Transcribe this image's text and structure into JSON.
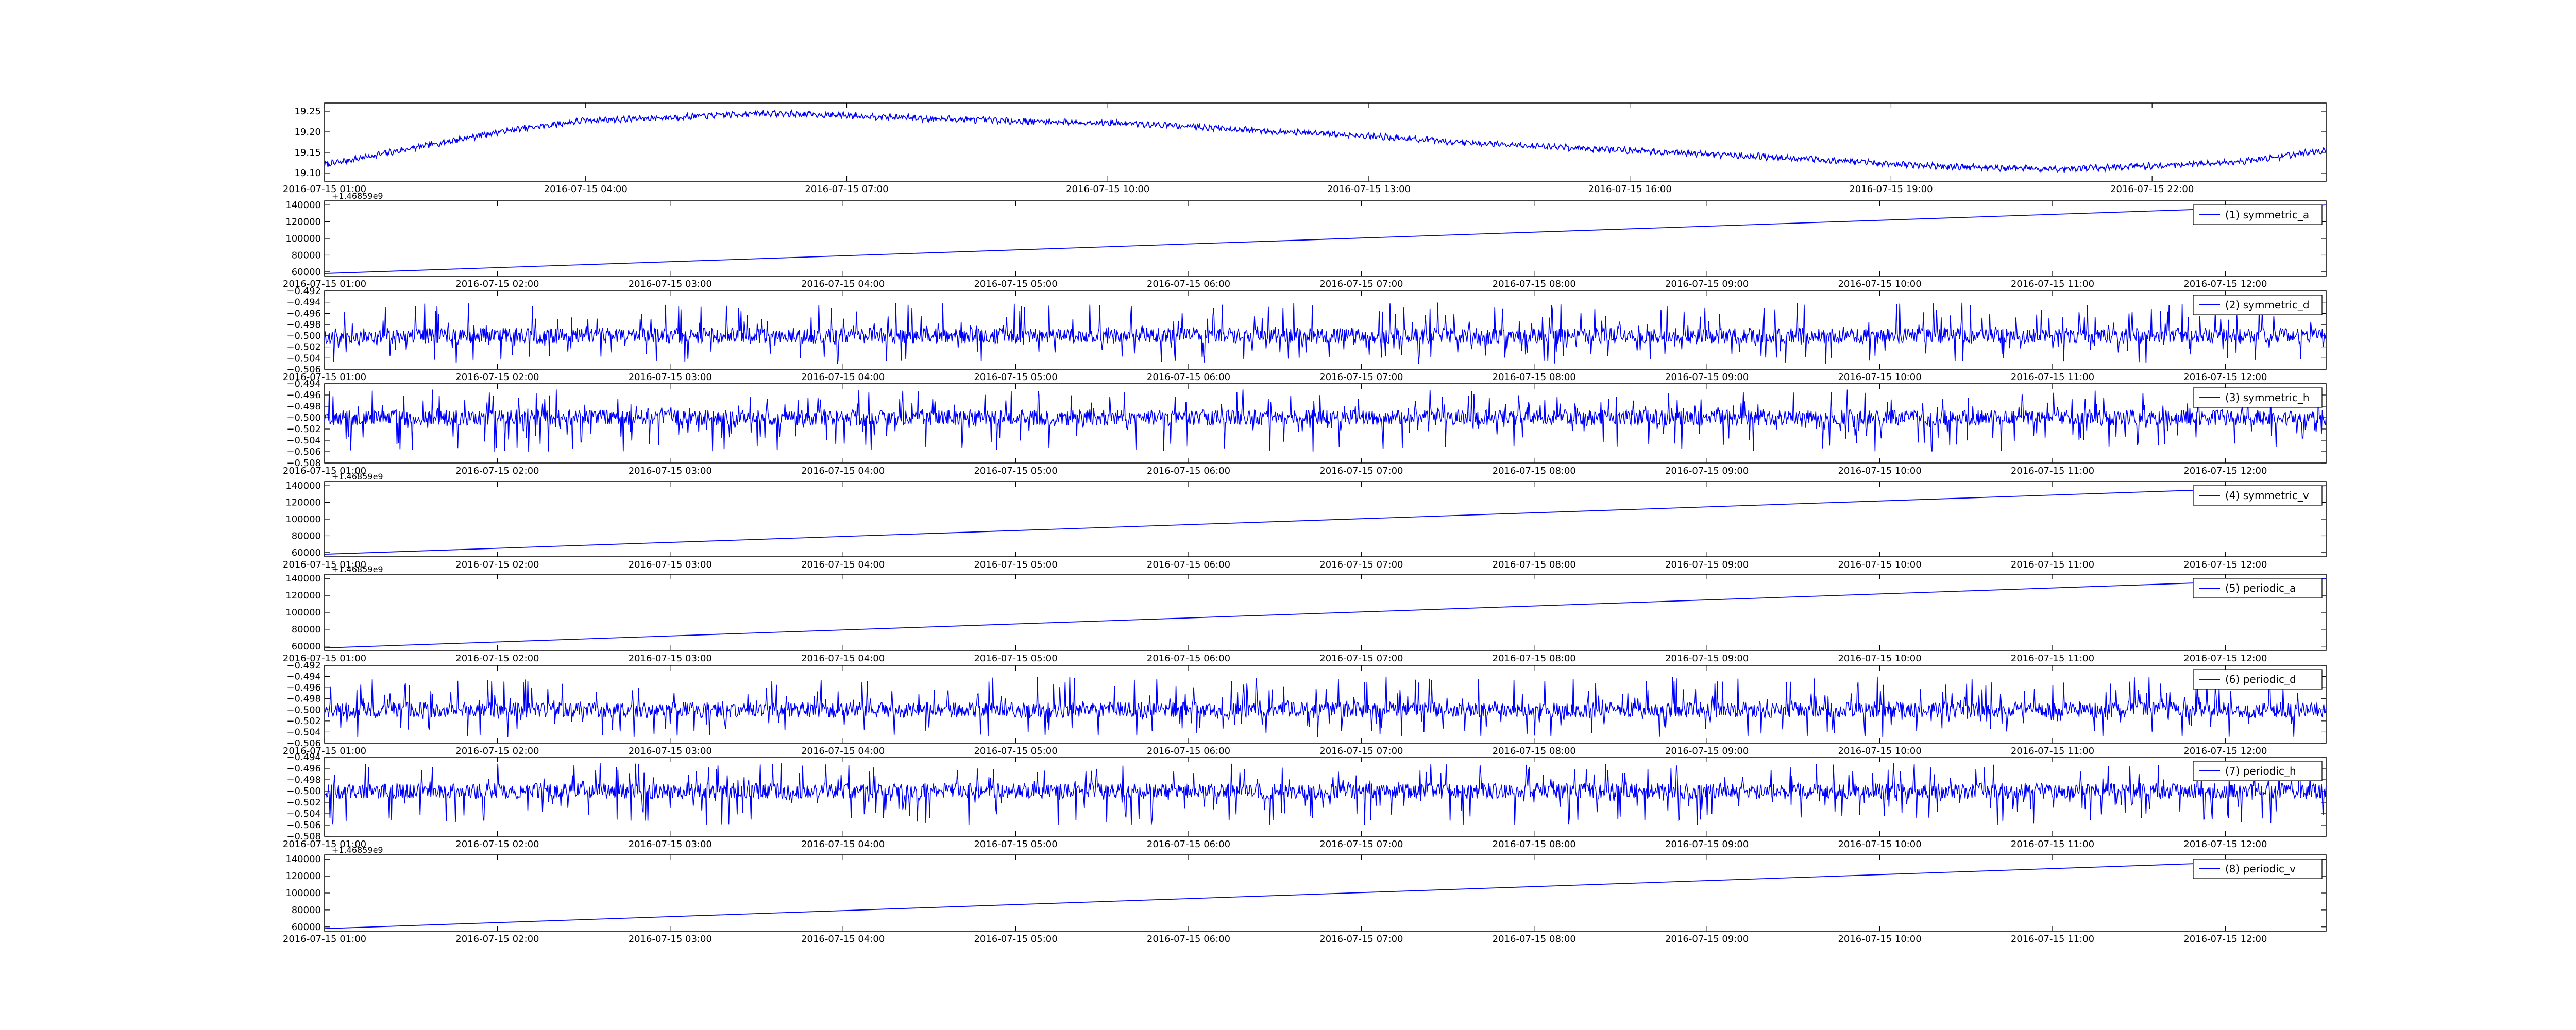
{
  "chart_data": [
    {
      "type": "line",
      "title": "",
      "xlabel": "",
      "ylabel": "",
      "x_range": [
        "2016-07-15 01:00",
        "2016-07-16 00:00"
      ],
      "ylim": [
        19.08,
        19.27
      ],
      "yticks": [
        19.1,
        19.15,
        19.2,
        19.25
      ],
      "ytick_labels": [
        "19.10",
        "19.15",
        "19.20",
        "19.25"
      ],
      "xticks": [
        "2016-07-15 01:00",
        "2016-07-15 04:00",
        "2016-07-15 07:00",
        "2016-07-15 10:00",
        "2016-07-15 13:00",
        "2016-07-15 16:00",
        "2016-07-15 19:00",
        "2016-07-15 22:00"
      ],
      "offset_label": "",
      "legend": null,
      "color": "#0000ff",
      "series": [
        {
          "x": [
            "2016-07-15 01:00",
            "2016-07-15 02:00",
            "2016-07-15 03:00",
            "2016-07-15 04:00",
            "2016-07-15 05:00",
            "2016-07-15 06:00",
            "2016-07-15 07:00",
            "2016-07-15 08:00",
            "2016-07-15 09:00",
            "2016-07-15 10:00",
            "2016-07-15 11:00",
            "2016-07-15 12:00",
            "2016-07-15 13:00",
            "2016-07-15 14:00",
            "2016-07-15 15:00",
            "2016-07-15 16:00",
            "2016-07-15 17:00",
            "2016-07-15 18:00",
            "2016-07-15 19:00",
            "2016-07-15 20:00",
            "2016-07-15 21:00",
            "2016-07-15 22:00",
            "2016-07-15 23:00",
            "2016-07-16 00:00"
          ],
          "values": [
            19.12,
            19.16,
            19.2,
            19.228,
            19.235,
            19.245,
            19.24,
            19.232,
            19.226,
            19.222,
            19.213,
            19.2,
            19.19,
            19.175,
            19.165,
            19.155,
            19.145,
            19.135,
            19.122,
            19.113,
            19.11,
            19.117,
            19.128,
            19.155
          ]
        }
      ]
    },
    {
      "type": "line",
      "title": "",
      "xlabel": "",
      "ylabel": "",
      "x_range": [
        "2016-07-15 01:00",
        "2016-07-15 12:35"
      ],
      "ylim": [
        55000,
        145000
      ],
      "yticks": [
        60000,
        80000,
        100000,
        120000,
        140000
      ],
      "ytick_labels": [
        "60000",
        "80000",
        "100000",
        "120000",
        "140000"
      ],
      "xticks": [
        "2016-07-15 01:00",
        "2016-07-15 02:00",
        "2016-07-15 03:00",
        "2016-07-15 04:00",
        "2016-07-15 05:00",
        "2016-07-15 06:00",
        "2016-07-15 07:00",
        "2016-07-15 08:00",
        "2016-07-15 09:00",
        "2016-07-15 10:00",
        "2016-07-15 11:00",
        "2016-07-15 12:00"
      ],
      "offset_label": "+1.46859e9",
      "legend": "(1) symmetric_a",
      "color": "#0000ff",
      "series": [
        {
          "name": "(1) symmetric_a",
          "x": [
            "2016-07-15 01:00",
            "2016-07-15 12:35"
          ],
          "values": [
            58000,
            140000
          ]
        }
      ]
    },
    {
      "type": "line",
      "title": "",
      "xlabel": "",
      "ylabel": "",
      "x_range": [
        "2016-07-15 01:00",
        "2016-07-15 12:35"
      ],
      "ylim": [
        -0.506,
        -0.492
      ],
      "yticks": [
        -0.506,
        -0.504,
        -0.502,
        -0.5,
        -0.498,
        -0.496,
        -0.494,
        -0.492
      ],
      "ytick_labels": [
        "−0.506",
        "−0.504",
        "−0.502",
        "−0.500",
        "−0.498",
        "−0.496",
        "−0.494",
        "−0.492"
      ],
      "xticks": [
        "2016-07-15 01:00",
        "2016-07-15 02:00",
        "2016-07-15 03:00",
        "2016-07-15 04:00",
        "2016-07-15 05:00",
        "2016-07-15 06:00",
        "2016-07-15 07:00",
        "2016-07-15 08:00",
        "2016-07-15 09:00",
        "2016-07-15 10:00",
        "2016-07-15 11:00",
        "2016-07-15 12:00"
      ],
      "offset_label": "",
      "legend": "(2) symmetric_d",
      "color": "#0000ff",
      "series": [
        {
          "name": "(2) symmetric_d",
          "note": "dense noise around baseline",
          "baseline": -0.5,
          "typical_min": -0.505,
          "typical_max": -0.494
        }
      ]
    },
    {
      "type": "line",
      "title": "",
      "xlabel": "",
      "ylabel": "",
      "x_range": [
        "2016-07-15 01:00",
        "2016-07-15 12:35"
      ],
      "ylim": [
        -0.508,
        -0.494
      ],
      "yticks": [
        -0.508,
        -0.506,
        -0.504,
        -0.502,
        -0.5,
        -0.498,
        -0.496,
        -0.494
      ],
      "ytick_labels": [
        "−0.508",
        "−0.506",
        "−0.504",
        "−0.502",
        "−0.500",
        "−0.498",
        "−0.496",
        "−0.494"
      ],
      "xticks": [
        "2016-07-15 01:00",
        "2016-07-15 02:00",
        "2016-07-15 03:00",
        "2016-07-15 04:00",
        "2016-07-15 05:00",
        "2016-07-15 06:00",
        "2016-07-15 07:00",
        "2016-07-15 08:00",
        "2016-07-15 09:00",
        "2016-07-15 10:00",
        "2016-07-15 11:00",
        "2016-07-15 12:00"
      ],
      "offset_label": "",
      "legend": "(3) symmetric_h",
      "color": "#0000ff",
      "series": [
        {
          "name": "(3) symmetric_h",
          "baseline": -0.5,
          "typical_min": -0.506,
          "typical_max": -0.495
        }
      ]
    },
    {
      "type": "line",
      "title": "",
      "xlabel": "",
      "ylabel": "",
      "x_range": [
        "2016-07-15 01:00",
        "2016-07-15 12:35"
      ],
      "ylim": [
        55000,
        145000
      ],
      "yticks": [
        60000,
        80000,
        100000,
        120000,
        140000
      ],
      "ytick_labels": [
        "60000",
        "80000",
        "100000",
        "120000",
        "140000"
      ],
      "xticks": [
        "2016-07-15 01:00",
        "2016-07-15 02:00",
        "2016-07-15 03:00",
        "2016-07-15 04:00",
        "2016-07-15 05:00",
        "2016-07-15 06:00",
        "2016-07-15 07:00",
        "2016-07-15 08:00",
        "2016-07-15 09:00",
        "2016-07-15 10:00",
        "2016-07-15 11:00",
        "2016-07-15 12:00"
      ],
      "offset_label": "+1.46859e9",
      "legend": "(4) symmetric_v",
      "color": "#0000ff",
      "series": [
        {
          "name": "(4) symmetric_v",
          "x": [
            "2016-07-15 01:00",
            "2016-07-15 12:35"
          ],
          "values": [
            58000,
            140000
          ]
        }
      ]
    },
    {
      "type": "line",
      "title": "",
      "xlabel": "",
      "ylabel": "",
      "x_range": [
        "2016-07-15 01:00",
        "2016-07-15 12:35"
      ],
      "ylim": [
        55000,
        145000
      ],
      "yticks": [
        60000,
        80000,
        100000,
        120000,
        140000
      ],
      "ytick_labels": [
        "60000",
        "80000",
        "100000",
        "120000",
        "140000"
      ],
      "xticks": [
        "2016-07-15 01:00",
        "2016-07-15 02:00",
        "2016-07-15 03:00",
        "2016-07-15 04:00",
        "2016-07-15 05:00",
        "2016-07-15 06:00",
        "2016-07-15 07:00",
        "2016-07-15 08:00",
        "2016-07-15 09:00",
        "2016-07-15 10:00",
        "2016-07-15 11:00",
        "2016-07-15 12:00"
      ],
      "offset_label": "+1.46859e9",
      "legend": "(5) periodic_a",
      "color": "#0000ff",
      "series": [
        {
          "name": "(5) periodic_a",
          "x": [
            "2016-07-15 01:00",
            "2016-07-15 12:35"
          ],
          "values": [
            58000,
            140000
          ]
        }
      ]
    },
    {
      "type": "line",
      "title": "",
      "xlabel": "",
      "ylabel": "",
      "x_range": [
        "2016-07-15 01:00",
        "2016-07-15 12:35"
      ],
      "ylim": [
        -0.506,
        -0.492
      ],
      "yticks": [
        -0.506,
        -0.504,
        -0.502,
        -0.5,
        -0.498,
        -0.496,
        -0.494,
        -0.492
      ],
      "ytick_labels": [
        "−0.506",
        "−0.504",
        "−0.502",
        "−0.500",
        "−0.498",
        "−0.496",
        "−0.494",
        "−0.492"
      ],
      "xticks": [
        "2016-07-15 01:00",
        "2016-07-15 02:00",
        "2016-07-15 03:00",
        "2016-07-15 04:00",
        "2016-07-15 05:00",
        "2016-07-15 06:00",
        "2016-07-15 07:00",
        "2016-07-15 08:00",
        "2016-07-15 09:00",
        "2016-07-15 10:00",
        "2016-07-15 11:00",
        "2016-07-15 12:00"
      ],
      "offset_label": "",
      "legend": "(6) periodic_d",
      "color": "#0000ff",
      "series": [
        {
          "name": "(6) periodic_d",
          "baseline": -0.5,
          "typical_min": -0.505,
          "typical_max": -0.494
        }
      ]
    },
    {
      "type": "line",
      "title": "",
      "xlabel": "",
      "ylabel": "",
      "x_range": [
        "2016-07-15 01:00",
        "2016-07-15 12:35"
      ],
      "ylim": [
        -0.508,
        -0.494
      ],
      "yticks": [
        -0.508,
        -0.506,
        -0.504,
        -0.502,
        -0.5,
        -0.498,
        -0.496,
        -0.494
      ],
      "ytick_labels": [
        "−0.508",
        "−0.506",
        "−0.504",
        "−0.502",
        "−0.500",
        "−0.498",
        "−0.496",
        "−0.494"
      ],
      "xticks": [
        "2016-07-15 01:00",
        "2016-07-15 02:00",
        "2016-07-15 03:00",
        "2016-07-15 04:00",
        "2016-07-15 05:00",
        "2016-07-15 06:00",
        "2016-07-15 07:00",
        "2016-07-15 08:00",
        "2016-07-15 09:00",
        "2016-07-15 10:00",
        "2016-07-15 11:00",
        "2016-07-15 12:00"
      ],
      "offset_label": "",
      "legend": "(7) periodic_h",
      "color": "#0000ff",
      "series": [
        {
          "name": "(7) periodic_h",
          "baseline": -0.5,
          "typical_min": -0.506,
          "typical_max": -0.495
        }
      ]
    },
    {
      "type": "line",
      "title": "",
      "xlabel": "",
      "ylabel": "",
      "x_range": [
        "2016-07-15 01:00",
        "2016-07-15 12:35"
      ],
      "ylim": [
        55000,
        145000
      ],
      "yticks": [
        60000,
        80000,
        100000,
        120000,
        140000
      ],
      "ytick_labels": [
        "60000",
        "80000",
        "100000",
        "120000",
        "140000"
      ],
      "xticks": [
        "2016-07-15 01:00",
        "2016-07-15 02:00",
        "2016-07-15 03:00",
        "2016-07-15 04:00",
        "2016-07-15 05:00",
        "2016-07-15 06:00",
        "2016-07-15 07:00",
        "2016-07-15 08:00",
        "2016-07-15 09:00",
        "2016-07-15 10:00",
        "2016-07-15 11:00",
        "2016-07-15 12:00"
      ],
      "offset_label": "+1.46859e9",
      "legend": "(8) periodic_v",
      "color": "#0000ff",
      "series": [
        {
          "name": "(8) periodic_v",
          "x": [
            "2016-07-15 01:00",
            "2016-07-15 12:35"
          ],
          "values": [
            58000,
            140000
          ]
        }
      ]
    }
  ]
}
